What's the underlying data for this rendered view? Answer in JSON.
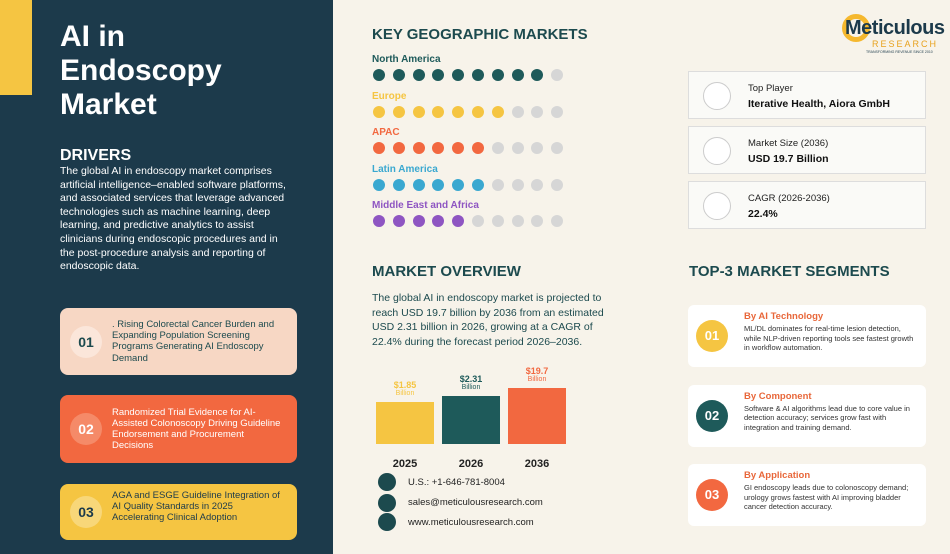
{
  "header": {
    "title": "AI in Endoscopy Market"
  },
  "logo": {
    "name": "Meticulous",
    "sub": "RESEARCH",
    "tagline": "TRANSFORMING REVENUE SINCE 2010"
  },
  "drivers": {
    "heading": "DRIVERS",
    "intro": "The global AI in endoscopy market comprises artificial intelligence–enabled software platforms, and associated services that leverage advanced technologies such as machine learning, deep learning, and predictive analytics to assist clinicians during endoscopic procedures and in the post-procedure analysis and reporting of endoscopic data.",
    "items": [
      {
        "number": "01",
        "text": ". Rising Colorectal Cancer Burden and Expanding Population Screening Programs Generating AI Endoscopy Demand"
      },
      {
        "number": "02",
        "text": "Randomized Trial Evidence for AI-Assisted Colonoscopy Driving Guideline Endorsement and Procurement Decisions"
      },
      {
        "number": "03",
        "text": "AGA and ESGE Guideline Integration of AI Quality Standards in 2025 Accelerating Clinical Adoption"
      }
    ]
  },
  "geographic_markets": {
    "heading": "KEY GEOGRAPHIC MARKETS",
    "regions": [
      {
        "name": "North America",
        "color": "#1e5a5a",
        "rating": 9
      },
      {
        "name": "Europe",
        "color": "#f5c542",
        "rating": 7
      },
      {
        "name": "APAC",
        "color": "#f26840",
        "rating": 6
      },
      {
        "name": "Latin America",
        "color": "#3aa8d0",
        "rating": 6
      },
      {
        "name": "Middle East and Africa",
        "color": "#8e55c2",
        "rating": 5
      }
    ]
  },
  "stats": [
    {
      "label": "Top Player",
      "value": "Iterative Health, Aiora GmbH"
    },
    {
      "label": "Market Size (2036)",
      "value": "USD 19.7 Billion"
    },
    {
      "label": "CAGR (2026-2036)",
      "value": "22.4%"
    }
  ],
  "market_overview": {
    "heading": "MARKET OVERVIEW",
    "text": "The global AI in endoscopy market is projected to reach USD 19.7 billion by 2036 from an estimated USD 2.31 billion in 2026, growing at a CAGR of 22.4% during the forecast period 2026–2036.",
    "bars": [
      {
        "value": "$1.85",
        "unit": "Billion",
        "year": "2025"
      },
      {
        "value": "$2.31",
        "unit": "Billion",
        "year": "2026"
      },
      {
        "value": "$19.7",
        "unit": "Billion",
        "year": "2036"
      }
    ]
  },
  "segments": {
    "heading": "TOP-3 MARKET SEGMENTS",
    "items": [
      {
        "number": "01",
        "title": "By AI Technology",
        "text": "ML/DL dominates for real-time lesion detection, while NLP-driven reporting tools see fastest growth in workflow automation."
      },
      {
        "number": "02",
        "title": "By Component",
        "text": "Software & AI algorithms lead due to core value in detection accuracy; services grow fast with integration and training demand."
      },
      {
        "number": "03",
        "title": "By Application",
        "text": "GI endoscopy leads due to colonoscopy demand; urology grows fastest with AI improving bladder cancer detection accuracy."
      }
    ]
  },
  "contact": {
    "phone": "U.S.: +1-646-781-8004",
    "email": "sales@meticulousresearch.com",
    "web": "www.meticulousresearch.com"
  }
}
